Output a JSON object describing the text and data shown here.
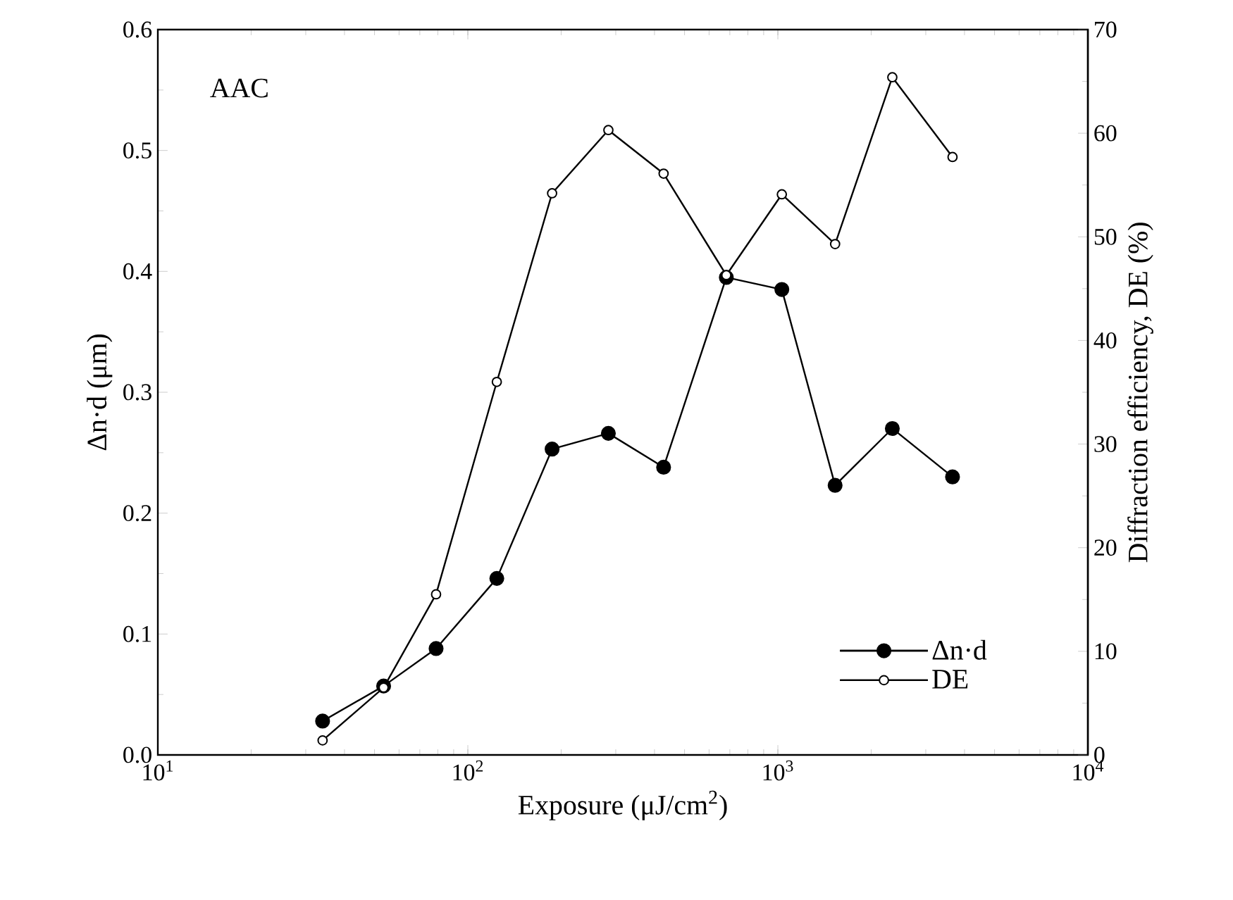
{
  "chart_data": {
    "type": "line",
    "xlabel": "Exposure (μJ/cm$^{2}$)",
    "ylabel": "Δn·d (μm)",
    "y2label": "Diffraction efficiency, DE (%)",
    "annotations": [
      "AAC"
    ],
    "log": "x",
    "x": [
      34,
      53.5,
      79,
      124,
      187,
      284,
      428,
      682,
      1030,
      1530,
      2340,
      3660
    ],
    "xlim": [
      10,
      10000
    ],
    "xticks": [
      {
        "value": 10,
        "label": "10$^{1}$"
      },
      {
        "value": 100,
        "label": "10$^{2}$"
      },
      {
        "value": 1000,
        "label": "10$^{3}$"
      },
      {
        "value": 10000,
        "label": "10$^{4}$"
      }
    ],
    "ylim": [
      0,
      0.6
    ],
    "yticks": [
      {
        "value": 0,
        "label": "0.0"
      },
      {
        "value": 0.1,
        "label": "0.1"
      },
      {
        "value": 0.2,
        "label": "0.2"
      },
      {
        "value": 0.3,
        "label": "0.3"
      },
      {
        "value": 0.4,
        "label": "0.4"
      },
      {
        "value": 0.5,
        "label": "0.5"
      },
      {
        "value": 0.6,
        "label": "0.6"
      }
    ],
    "y2lim": [
      0,
      70
    ],
    "y2ticks": [
      0,
      10,
      20,
      30,
      40,
      50,
      60,
      70
    ],
    "marker": "circle",
    "legend": "bottom right",
    "series": [
      {
        "name": "Δn·d",
        "color": "#000000",
        "values": [
          0.028,
          0.057,
          0.088,
          0.146,
          0.253,
          0.266,
          0.238,
          0.395,
          0.385,
          0.223,
          0.27,
          0.23
        ]
      },
      {
        "name": "DE",
        "color": "#000000",
        "axis": "y2",
        "values": [
          1.4,
          6.5,
          15.5,
          36.0,
          54.2,
          60.3,
          56.1,
          46.3,
          54.1,
          49.3,
          65.4,
          57.7
        ]
      }
    ]
  }
}
